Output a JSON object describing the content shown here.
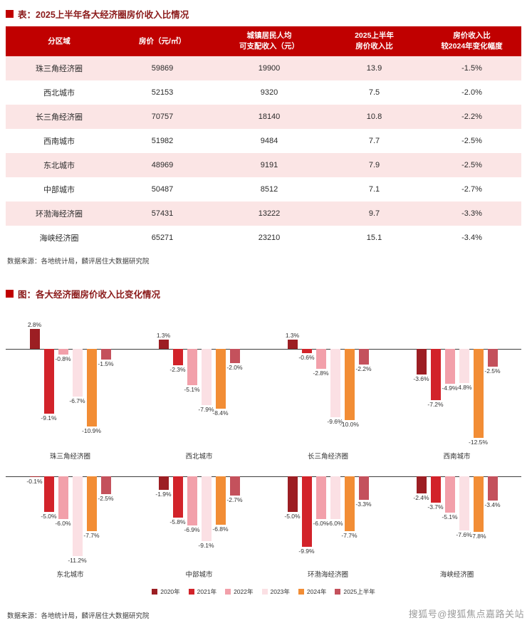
{
  "page": {
    "table_title": "表：2025上半年各大经济圈房价收入比情况",
    "chart_title": "图：各大经济圈房价收入比变化情况",
    "table_source": "数据来源：各地统计局，麟评居住大数据研究院",
    "chart_source": "数据来源：各地统计局，麟评居住大数据研究院",
    "watermark": "搜狐号@搜狐焦点嘉路关站"
  },
  "table": {
    "headers": [
      "分区域",
      "房价（元/㎡）",
      "城镇居民人均\n可支配收入（元）",
      "2025上半年\n房价收入比",
      "房价收入比\n较2024年变化幅度"
    ],
    "rows": [
      [
        "珠三角经济圈",
        "59869",
        "19900",
        "13.9",
        "-1.5%"
      ],
      [
        "西北城市",
        "52153",
        "9320",
        "7.5",
        "-2.0%"
      ],
      [
        "长三角经济圈",
        "70757",
        "18140",
        "10.8",
        "-2.2%"
      ],
      [
        "西南城市",
        "51982",
        "9484",
        "7.7",
        "-2.5%"
      ],
      [
        "东北城市",
        "48969",
        "9191",
        "7.9",
        "-2.5%"
      ],
      [
        "中部城市",
        "50487",
        "8512",
        "7.1",
        "-2.7%"
      ],
      [
        "环渤海经济圈",
        "57431",
        "13222",
        "9.7",
        "-3.3%"
      ],
      [
        "海峡经济圈",
        "65271",
        "23210",
        "15.1",
        "-3.4%"
      ]
    ]
  },
  "chart_data": {
    "type": "bar",
    "title": "各大经济圈房价收入比变化情况",
    "unit": "%",
    "legend_position": "bottom",
    "series_labels": [
      "2020年",
      "2021年",
      "2022年",
      "2023年",
      "2024年",
      "2025上半年"
    ],
    "series_colors": [
      "#9c1e23",
      "#d2232a",
      "#f2a0aa",
      "#fbe0e4",
      "#f28d35",
      "#c4515c"
    ],
    "groups": [
      {
        "name": "珠三角经济圈",
        "values": [
          2.8,
          -9.1,
          -0.8,
          -6.7,
          -10.9,
          -1.5
        ]
      },
      {
        "name": "西北城市",
        "values": [
          1.3,
          -2.3,
          -5.1,
          -7.9,
          -8.4,
          -2.0
        ]
      },
      {
        "name": "长三角经济圈",
        "values": [
          1.3,
          -0.6,
          -2.8,
          -9.6,
          -10.0,
          -2.2
        ]
      },
      {
        "name": "西南城市",
        "values": [
          -3.6,
          -7.2,
          -4.9,
          -4.8,
          -12.5,
          -2.5
        ]
      },
      {
        "name": "东北城市",
        "values": [
          -0.1,
          -5.0,
          -6.0,
          -11.2,
          -7.7,
          -2.5
        ]
      },
      {
        "name": "中部城市",
        "values": [
          -1.9,
          -5.8,
          -6.9,
          -9.1,
          -6.8,
          -2.7
        ]
      },
      {
        "name": "环渤海经济圈",
        "values": [
          -5.0,
          -9.9,
          -6.0,
          -6.0,
          -7.7,
          -3.3
        ]
      },
      {
        "name": "海峡经济圈",
        "values": [
          -2.4,
          -3.7,
          -5.1,
          -7.6,
          -7.8,
          -3.4
        ]
      }
    ]
  }
}
